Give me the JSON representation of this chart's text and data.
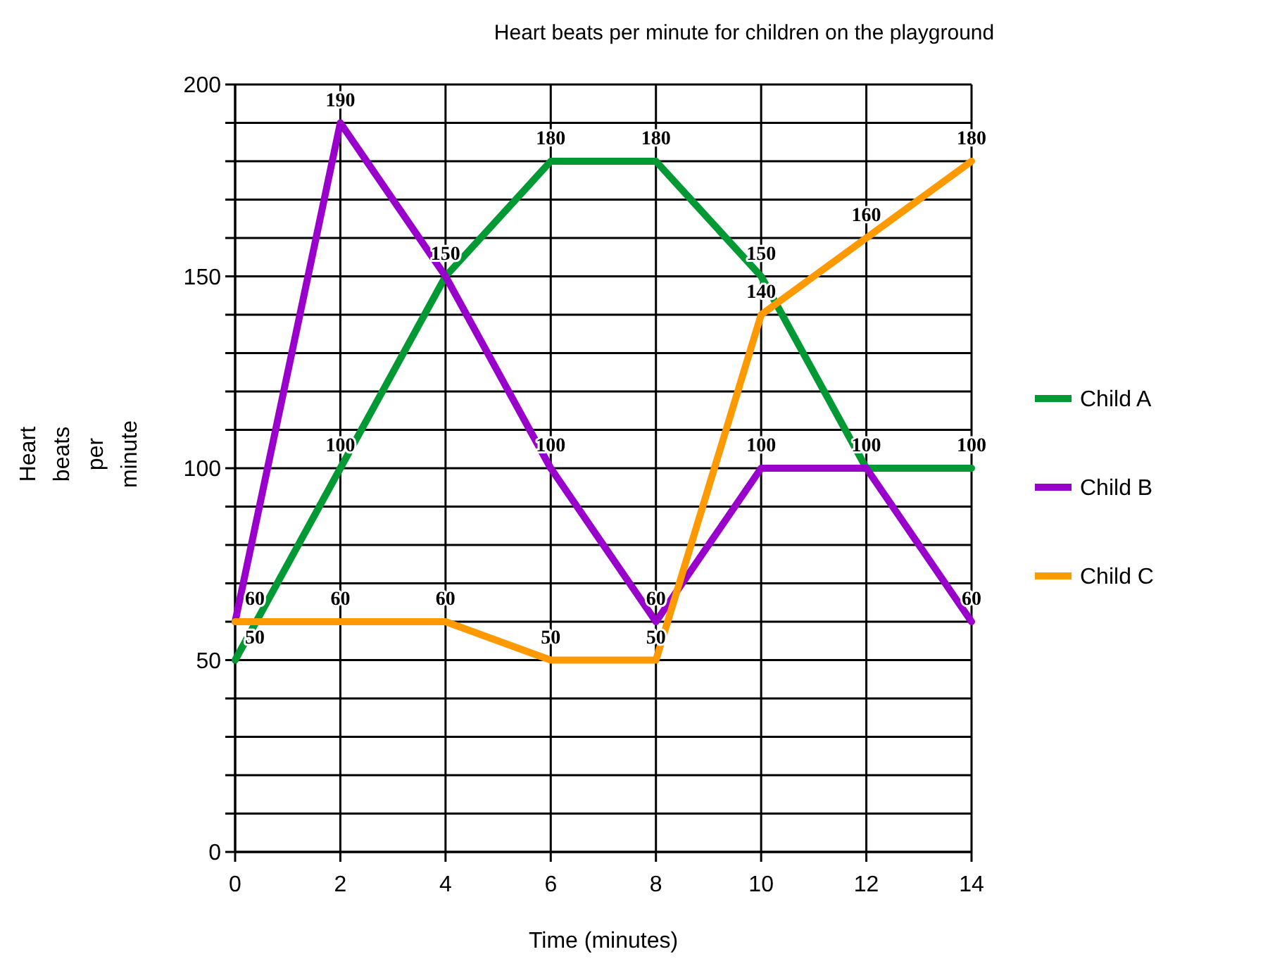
{
  "chart_data": {
    "type": "line",
    "title": "Heart beats per minute for children on the playground",
    "xlabel": "Time (minutes)",
    "ylabel": "Heart beats per minute",
    "x": [
      0,
      2,
      4,
      6,
      8,
      10,
      12,
      14
    ],
    "series": [
      {
        "name": "Child A",
        "color": "#009933",
        "values": [
          50,
          100,
          150,
          180,
          180,
          150,
          100,
          100
        ],
        "value_labels": [
          "50",
          "100",
          "150",
          "180",
          "180",
          "150",
          "100",
          "100"
        ]
      },
      {
        "name": "Child B",
        "color": "#9900cc",
        "values": [
          60,
          190,
          150,
          100,
          60,
          100,
          100,
          60
        ],
        "value_labels": [
          "60",
          "190",
          null,
          "100",
          "60",
          "100",
          null,
          "60"
        ]
      },
      {
        "name": "Child C",
        "color": "#ff9900",
        "values": [
          60,
          60,
          60,
          50,
          50,
          140,
          160,
          180
        ],
        "value_labels": [
          null,
          "60",
          "60",
          "50",
          "50",
          "140",
          "160",
          "180"
        ]
      }
    ],
    "xlim": [
      0,
      14
    ],
    "xticks": [
      0,
      2,
      4,
      6,
      8,
      10,
      12,
      14
    ],
    "ylim": [
      0,
      200
    ],
    "yticks": [
      0,
      {
        "value": 10,
        "label": null
      },
      {
        "value": 20,
        "label": null
      },
      {
        "value": 30,
        "label": null
      },
      {
        "value": 40,
        "label": null
      },
      50,
      {
        "value": 60,
        "label": null
      },
      {
        "value": 70,
        "label": null
      },
      {
        "value": 80,
        "label": null
      },
      {
        "value": 90,
        "label": null
      },
      100,
      {
        "value": 110,
        "label": null
      },
      {
        "value": 120,
        "label": null
      },
      {
        "value": 130,
        "label": null
      },
      {
        "value": 140,
        "label": null
      },
      150,
      {
        "value": 160,
        "label": null
      },
      {
        "value": 170,
        "label": null
      },
      {
        "value": 180,
        "label": null
      },
      {
        "value": 190,
        "label": null
      },
      200
    ],
    "grid": true,
    "legend": "right",
    "marker": "none",
    "line_style": "solid"
  }
}
